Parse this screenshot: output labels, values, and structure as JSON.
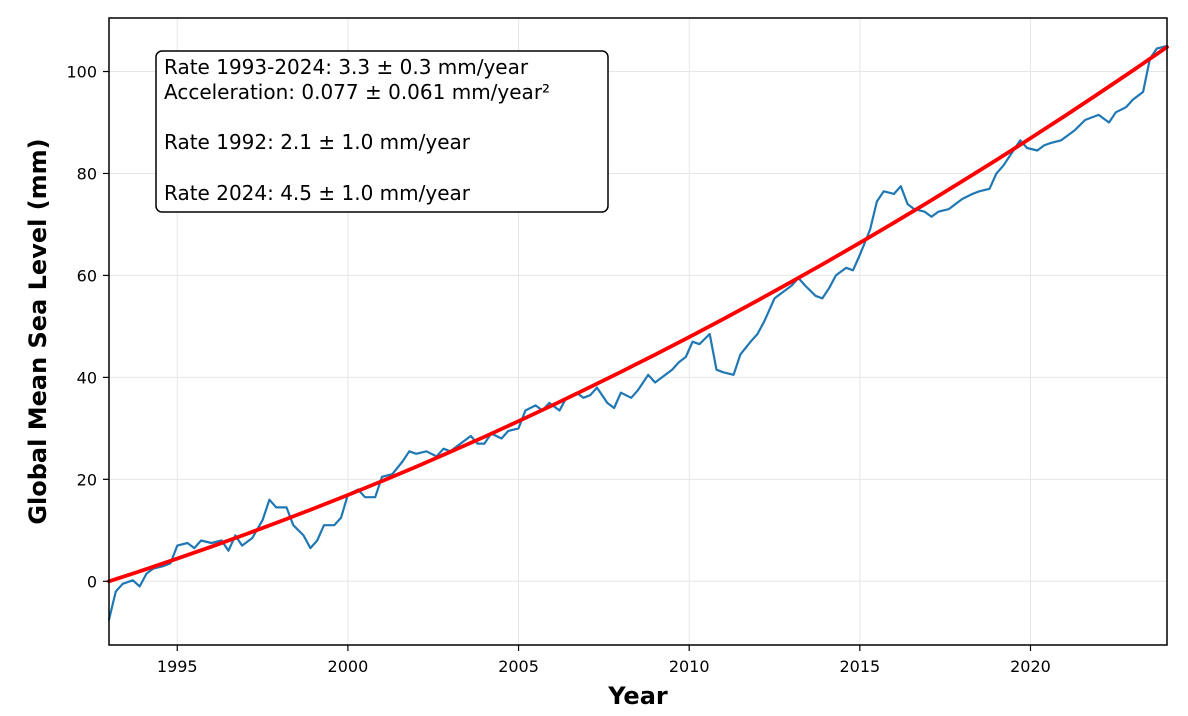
{
  "chart_data": {
    "type": "line",
    "xlabel": "Year",
    "ylabel": "Global Mean Sea Level (mm)",
    "xlim": [
      1993.0,
      2024.0
    ],
    "ylim": [
      -12.5,
      110.5
    ],
    "x_ticks": [
      1995,
      2000,
      2005,
      2010,
      2015,
      2020
    ],
    "y_ticks": [
      0,
      20,
      40,
      60,
      80,
      100
    ],
    "grid": true,
    "annotation": {
      "position": "top-left",
      "lines": [
        "Rate 1993-2024: 3.3 ± 0.3 mm/year",
        "Acceleration: 0.077 ± 0.061 mm/year²",
        "Rate 1992: 2.1 ± 1.0 mm/year",
        "Rate 2024: 4.5 ± 1.0 mm/year"
      ]
    },
    "series": [
      {
        "color": "#1f77b4",
        "x": [
          1993.0,
          1993.2,
          1993.4,
          1993.7,
          1993.9,
          1994.1,
          1994.3,
          1994.6,
          1994.8,
          1995.0,
          1995.3,
          1995.5,
          1995.7,
          1996.0,
          1996.3,
          1996.5,
          1996.7,
          1996.9,
          1997.2,
          1997.5,
          1997.7,
          1997.9,
          1998.2,
          1998.4,
          1998.7,
          1998.9,
          1999.1,
          1999.3,
          1999.6,
          1999.8,
          2000.0,
          2000.3,
          2000.5,
          2000.8,
          2001.0,
          2001.3,
          2001.6,
          2001.8,
          2002.0,
          2002.3,
          2002.6,
          2002.8,
          2003.0,
          2003.3,
          2003.6,
          2003.8,
          2004.0,
          2004.2,
          2004.5,
          2004.7,
          2005.0,
          2005.2,
          2005.5,
          2005.7,
          2005.9,
          2006.2,
          2006.4,
          2006.7,
          2006.9,
          2007.1,
          2007.3,
          2007.6,
          2007.8,
          2008.0,
          2008.3,
          2008.5,
          2008.8,
          2009.0,
          2009.2,
          2009.5,
          2009.7,
          2009.9,
          2010.1,
          2010.3,
          2010.6,
          2010.8,
          2011.0,
          2011.3,
          2011.5,
          2011.8,
          2012.0,
          2012.2,
          2012.5,
          2012.7,
          2013.0,
          2013.2,
          2013.4,
          2013.7,
          2013.9,
          2014.1,
          2014.3,
          2014.6,
          2014.8,
          2015.0,
          2015.3,
          2015.5,
          2015.7,
          2016.0,
          2016.2,
          2016.4,
          2016.6,
          2016.9,
          2017.1,
          2017.3,
          2017.6,
          2017.8,
          2018.0,
          2018.3,
          2018.5,
          2018.8,
          2019.0,
          2019.2,
          2019.5,
          2019.7,
          2019.9,
          2020.2,
          2020.4,
          2020.6,
          2020.9,
          2021.1,
          2021.3,
          2021.6,
          2021.8,
          2022.0,
          2022.3,
          2022.5,
          2022.8,
          2023.0,
          2023.3,
          2023.5,
          2023.7,
          2024.0
        ],
        "values": [
          -7.5,
          -2.0,
          -0.5,
          0.2,
          -1.0,
          1.5,
          2.5,
          3.0,
          3.5,
          7.0,
          7.5,
          6.5,
          8.0,
          7.5,
          8.0,
          6.0,
          9.0,
          7.0,
          8.5,
          12.0,
          16.0,
          14.5,
          14.5,
          11.0,
          9.0,
          6.5,
          8.0,
          11.0,
          11.0,
          12.5,
          17.0,
          18.0,
          16.5,
          16.5,
          20.5,
          21.0,
          23.5,
          25.5,
          25.0,
          25.5,
          24.5,
          26.0,
          25.5,
          27.0,
          28.5,
          27.0,
          27.0,
          29.0,
          28.0,
          29.5,
          30.0,
          33.5,
          34.5,
          33.5,
          35.0,
          33.5,
          36.0,
          37.0,
          36.0,
          36.5,
          38.0,
          35.0,
          34.0,
          37.0,
          36.0,
          37.5,
          40.5,
          39.0,
          40.0,
          41.5,
          43.0,
          44.0,
          47.0,
          46.5,
          48.5,
          41.5,
          41.0,
          40.5,
          44.5,
          47.0,
          48.5,
          51.0,
          55.5,
          56.5,
          58.0,
          59.5,
          58.0,
          56.0,
          55.5,
          57.5,
          60.0,
          61.5,
          61.0,
          64.0,
          69.0,
          74.5,
          76.5,
          76.0,
          77.5,
          74.0,
          73.0,
          72.5,
          71.5,
          72.5,
          73.0,
          74.0,
          75.0,
          76.0,
          76.5,
          77.0,
          80.0,
          81.5,
          84.5,
          86.5,
          85.0,
          84.5,
          85.5,
          86.0,
          86.5,
          87.5,
          88.5,
          90.5,
          91.0,
          91.5,
          90.0,
          92.0,
          93.0,
          94.5,
          96.0,
          102.5,
          104.5,
          105.0
        ]
      },
      {
        "color": "#ff0000",
        "x": [
          1993.0,
          1994.0,
          1995.0,
          1996.0,
          1997.0,
          1998.0,
          1999.0,
          2000.0,
          2001.0,
          2002.0,
          2003.0,
          2004.0,
          2005.0,
          2006.0,
          2007.0,
          2008.0,
          2009.0,
          2010.0,
          2011.0,
          2012.0,
          2013.0,
          2014.0,
          2015.0,
          2016.0,
          2017.0,
          2018.0,
          2019.0,
          2020.0,
          2021.0,
          2022.0,
          2023.0,
          2024.0
        ],
        "values": [
          0.0,
          2.18,
          4.44,
          6.78,
          9.2,
          11.7,
          14.27,
          16.93,
          19.66,
          22.48,
          25.38,
          28.35,
          31.41,
          34.55,
          37.77,
          41.07,
          44.44,
          47.9,
          51.44,
          55.06,
          58.76,
          62.54,
          66.4,
          70.34,
          74.37,
          78.47,
          82.65,
          86.92,
          91.26,
          95.69,
          100.2,
          104.8
        ]
      }
    ]
  }
}
